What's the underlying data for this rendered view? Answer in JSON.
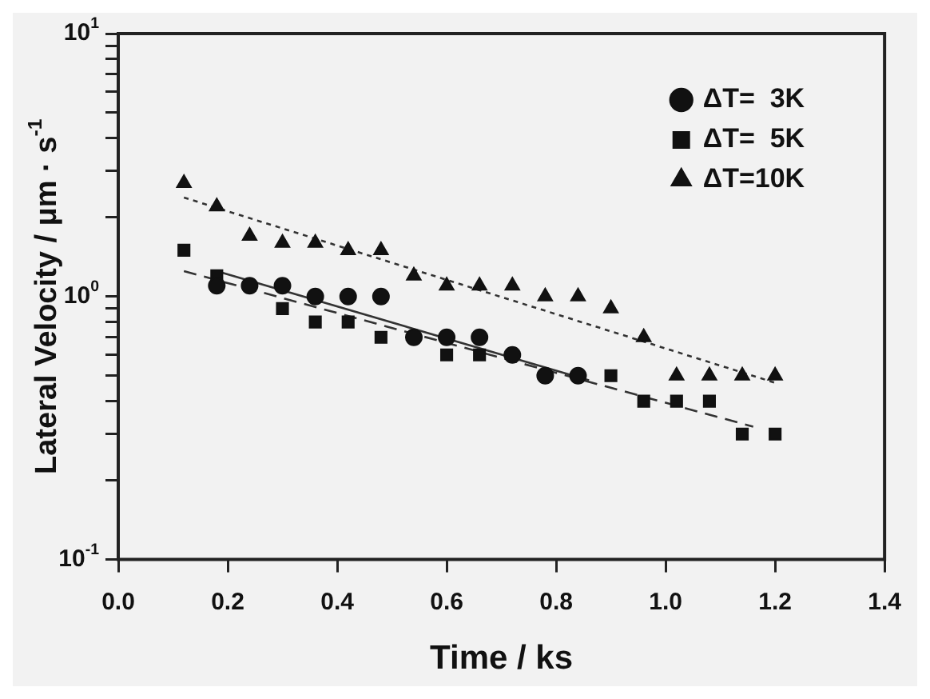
{
  "chart_data": {
    "type": "scatter",
    "xlabel": "Time / ks",
    "ylabel": "Lateral Velocity / μm · s$^{-1}$",
    "xlim": [
      0,
      1.4
    ],
    "xticks": [
      {
        "value": 0,
        "label": "0.0"
      },
      0.2,
      0.4,
      0.6,
      0.8,
      {
        "value": 1,
        "label": "1.0"
      },
      1.2,
      1.4
    ],
    "ylim": [
      0.1,
      10
    ],
    "yticks": [
      {
        "value": 0.1,
        "label": "10$^{-1}$"
      },
      {
        "value": 0.2,
        "label": null
      },
      {
        "value": 0.3,
        "label": null
      },
      {
        "value": 0.4,
        "label": null
      },
      {
        "value": 0.5,
        "label": null
      },
      {
        "value": 0.6,
        "label": null
      },
      {
        "value": 0.7,
        "label": null
      },
      {
        "value": 0.8,
        "label": null
      },
      {
        "value": 0.9,
        "label": null
      },
      {
        "value": 1,
        "label": "10$^{0}$"
      },
      {
        "value": 2,
        "label": null
      },
      {
        "value": 3,
        "label": null
      },
      {
        "value": 4,
        "label": null
      },
      {
        "value": 5,
        "label": null
      },
      {
        "value": 6,
        "label": null
      },
      {
        "value": 7,
        "label": null
      },
      {
        "value": 8,
        "label": null
      },
      {
        "value": 9,
        "label": null
      },
      {
        "value": 10,
        "label": "10$^{1}$"
      }
    ],
    "log": "y",
    "grid": false,
    "legend": "top right",
    "series": [
      {
        "name": "ΔT=  3K",
        "marker": "circle",
        "color": "#111111",
        "x": [
          0.18,
          0.24,
          0.3,
          0.36,
          0.42,
          0.48,
          0.54,
          0.6,
          0.66,
          0.72,
          0.78,
          0.84
        ],
        "values": [
          1.1,
          1.1,
          1.1,
          1.0,
          1.0,
          1.0,
          0.7,
          0.7,
          0.7,
          0.6,
          0.5,
          0.5
        ]
      },
      {
        "name": "ΔT=  5K",
        "marker": "square",
        "color": "#111111",
        "x": [
          0.12,
          0.18,
          0.3,
          0.36,
          0.42,
          0.48,
          0.6,
          0.66,
          0.9,
          0.96,
          1.02,
          1.08,
          1.14,
          1.2
        ],
        "values": [
          1.5,
          1.2,
          0.9,
          0.8,
          0.8,
          0.7,
          0.6,
          0.6,
          0.5,
          0.4,
          0.4,
          0.4,
          0.3,
          0.3
        ]
      },
      {
        "name": "ΔT=10K",
        "marker": "triangle",
        "color": "#111111",
        "x": [
          0.12,
          0.18,
          0.24,
          0.3,
          0.36,
          0.42,
          0.48,
          0.54,
          0.6,
          0.66,
          0.72,
          0.78,
          0.84,
          0.9,
          0.96,
          1.02,
          1.08,
          1.14,
          1.2
        ],
        "values": [
          2.7,
          2.2,
          1.7,
          1.6,
          1.6,
          1.5,
          1.5,
          1.2,
          1.1,
          1.1,
          1.1,
          1.0,
          1.0,
          0.9,
          0.7,
          0.5,
          0.5,
          0.5,
          0.5
        ]
      },
      {
        "type": "line",
        "line_style": "solid",
        "color": "#333333",
        "x": [
          0.18,
          0.86
        ],
        "values": [
          1.25,
          0.48
        ]
      },
      {
        "type": "line",
        "line_style": "dashed",
        "color": "#333333",
        "x": [
          0.12,
          1.16
        ],
        "values": [
          1.25,
          0.32
        ]
      },
      {
        "type": "line",
        "line_style": "dotted",
        "color": "#333333",
        "x": [
          0.12,
          1.2
        ],
        "values": [
          2.38,
          0.47
        ]
      }
    ]
  }
}
